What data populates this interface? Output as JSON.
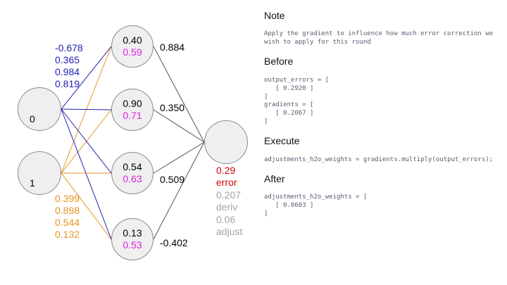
{
  "inputs": [
    {
      "value": "0"
    },
    {
      "value": "1"
    }
  ],
  "input_weights": {
    "from_input_0": [
      "-0.678",
      "0.365",
      "0.984",
      "0.819"
    ],
    "from_input_1": [
      "0.399",
      "0.898",
      "0.544",
      "0.132"
    ]
  },
  "hidden": [
    {
      "top": "0.40",
      "bottom": "0.59"
    },
    {
      "top": "0.90",
      "bottom": "0.71"
    },
    {
      "top": "0.54",
      "bottom": "0.63"
    },
    {
      "top": "0.13",
      "bottom": "0.53"
    }
  ],
  "hidden_output_weights": [
    "0.884",
    "0.350",
    "0.509",
    "-0.402"
  ],
  "output": {
    "error_value": "0.29",
    "error_label": "error",
    "deriv_value": "0.207",
    "deriv_label": "deriv",
    "adjust_value": "0.06",
    "adjust_label": "adjust"
  },
  "colors": {
    "input0_edges": "#1f1fb0",
    "input1_edges": "#e69520",
    "hidden_output_edges": "#555555",
    "hidden_second_value": "#e020e0",
    "error": "#d40000",
    "muted": "#a3a3a3"
  },
  "panel": {
    "note_heading": "Note",
    "note_text": "Apply the gradient to influence how much error correction we\nwish to apply for this round",
    "before_heading": "Before",
    "before_code": "output_errors = [\n   [ 0.2920 ]\n]\ngradients = [\n   [ 0.2067 ]\n]",
    "execute_heading": "Execute",
    "execute_code": "adjustments_h2o_weights = gradients.multiply(output_errors);",
    "after_heading": "After",
    "after_code": "adjustments_h2o_weights = [\n   [ 0.0603 ]\n]"
  }
}
